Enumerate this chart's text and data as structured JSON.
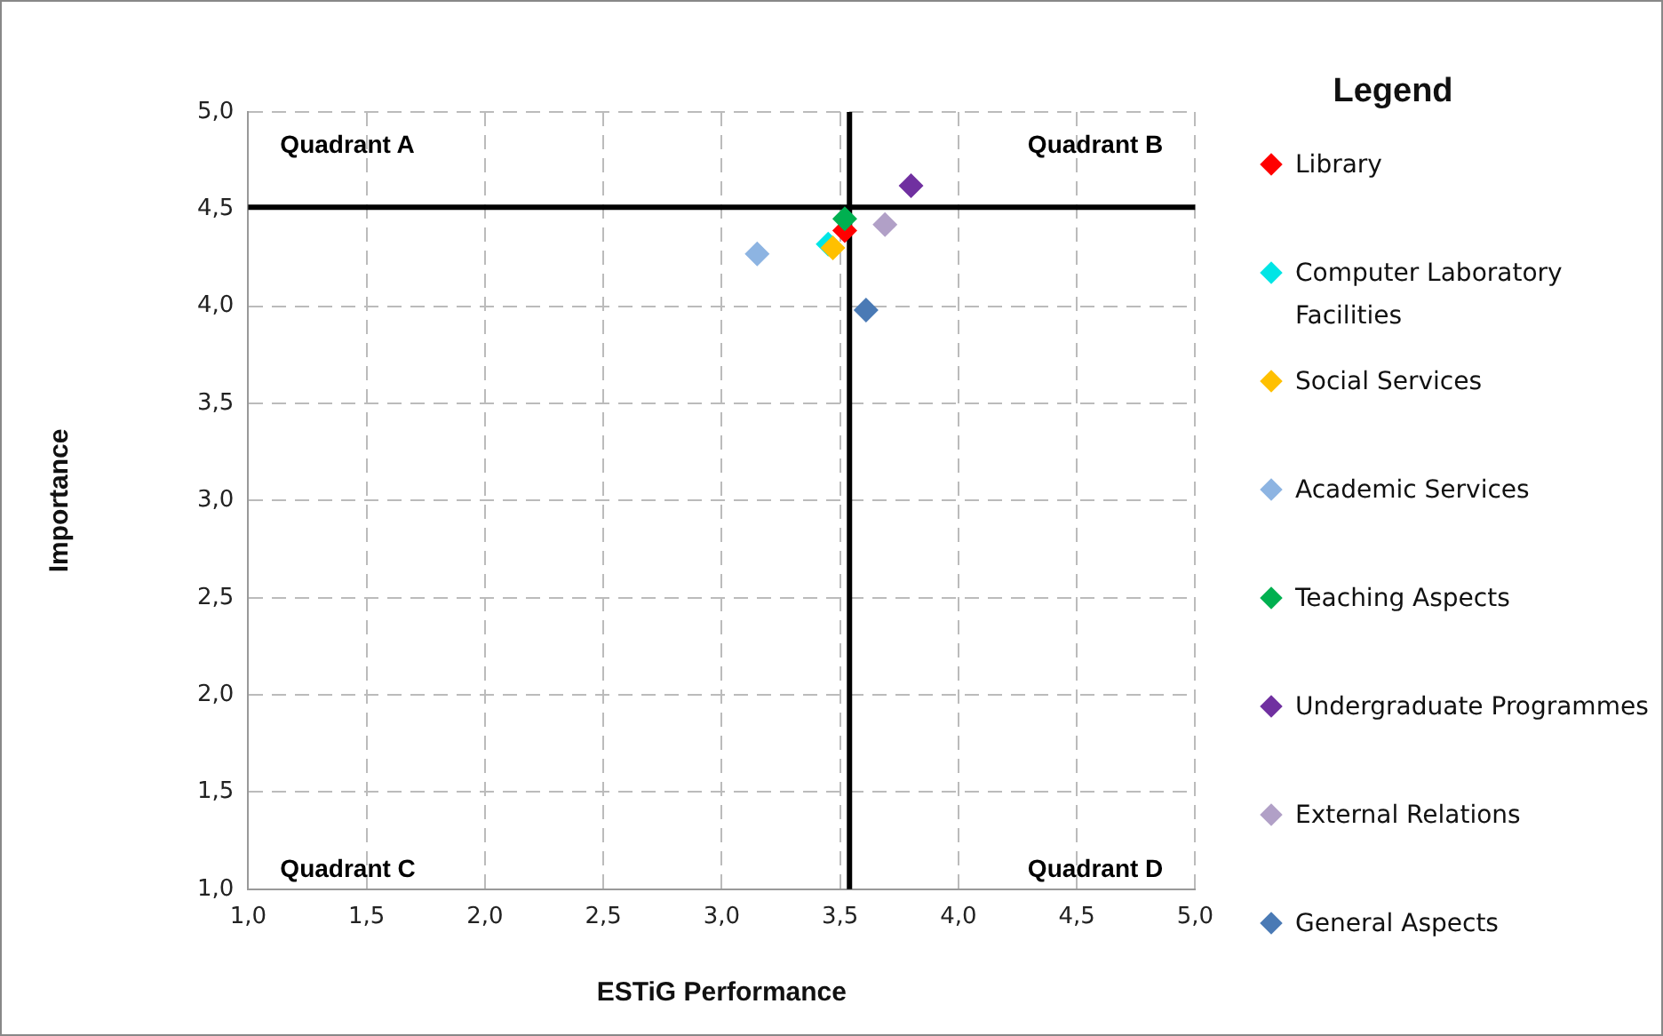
{
  "chart_data": {
    "type": "scatter",
    "xlabel": "ESTiG Performance",
    "ylabel": "Importance",
    "legend_title": "Legend",
    "legend": "right",
    "marker": "diamond",
    "grid": true,
    "xlim": [
      1,
      5
    ],
    "ylim": [
      1,
      5
    ],
    "xticks": [
      {
        "value": 1,
        "label": "1,0"
      },
      {
        "value": 1.5,
        "label": "1,5"
      },
      {
        "value": 2,
        "label": "2,0"
      },
      {
        "value": 2.5,
        "label": "2,5"
      },
      {
        "value": 3,
        "label": "3,0"
      },
      {
        "value": 3.5,
        "label": "3,5"
      },
      {
        "value": 4,
        "label": "4,0"
      },
      {
        "value": 4.5,
        "label": "4,5"
      },
      {
        "value": 5,
        "label": "5,0"
      }
    ],
    "yticks": [
      {
        "value": 1,
        "label": "1,0"
      },
      {
        "value": 1.5,
        "label": "1,5"
      },
      {
        "value": 2,
        "label": "2,0"
      },
      {
        "value": 2.5,
        "label": "2,5"
      },
      {
        "value": 3,
        "label": "3,0"
      },
      {
        "value": 3.5,
        "label": "3,5"
      },
      {
        "value": 4,
        "label": "4,0"
      },
      {
        "value": 4.5,
        "label": "4,5"
      },
      {
        "value": 5,
        "label": "5,0"
      }
    ],
    "series": [
      {
        "name": "Library",
        "color": "#ff0000",
        "x": [
          3.52
        ],
        "values": [
          4.39
        ]
      },
      {
        "name": "Computer Laboratory Facilities",
        "color": "#00e5e5",
        "x": [
          3.45
        ],
        "values": [
          4.32
        ]
      },
      {
        "name": "Social Services",
        "color": "#ffc000",
        "x": [
          3.47
        ],
        "values": [
          4.3
        ]
      },
      {
        "name": "Academic Services",
        "color": "#8db4e2",
        "x": [
          3.15
        ],
        "values": [
          4.27
        ]
      },
      {
        "name": "Teaching Aspects",
        "color": "#00b050",
        "x": [
          3.52
        ],
        "values": [
          4.45
        ]
      },
      {
        "name": "Undergraduate Programmes",
        "color": "#7030a0",
        "x": [
          3.8
        ],
        "values": [
          4.62
        ]
      },
      {
        "name": "External Relations",
        "color": "#b1a0c7",
        "x": [
          3.69
        ],
        "values": [
          4.42
        ]
      },
      {
        "name": "General Aspects",
        "color": "#4a7ab5",
        "x": [
          3.61
        ],
        "values": [
          3.98
        ]
      }
    ],
    "ref_lines": [
      {
        "axis": "x",
        "value": 3.54,
        "color": "#000000"
      },
      {
        "axis": "y",
        "value": 4.51,
        "color": "#000000"
      }
    ],
    "annotations": [
      "Quadrant A",
      "Quadrant B",
      "Quadrant C",
      "Quadrant D"
    ]
  }
}
